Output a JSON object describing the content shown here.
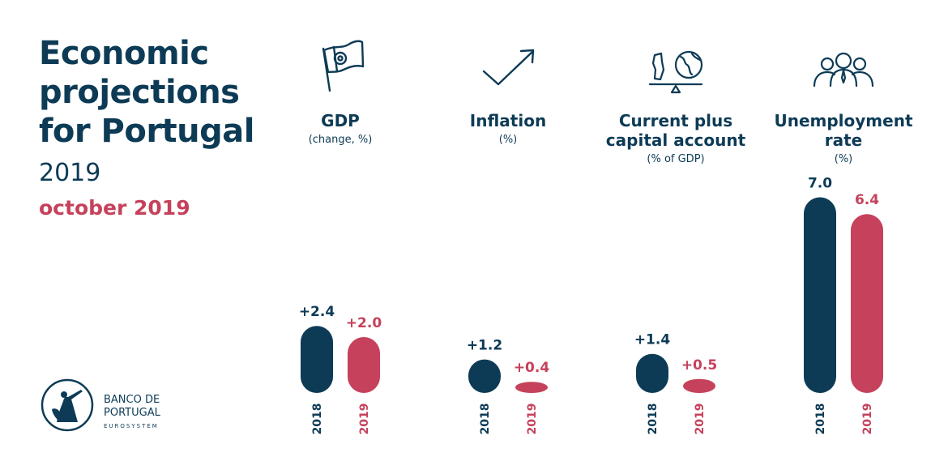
{
  "header": {
    "title_lines": [
      "Economic",
      "projections",
      "for Portugal"
    ],
    "year": "2019",
    "edition": "october 2019"
  },
  "logo": {
    "line1": "BANCO DE",
    "line2": "PORTUGAL",
    "line3": "EUROSYSTEM"
  },
  "colors": {
    "navy": "#0d3b56",
    "red": "#c6415b"
  },
  "chart_data": {
    "type": "bar",
    "series": [
      {
        "name": "2018",
        "color": "#0d3b56"
      },
      {
        "name": "2019",
        "color": "#c6415b"
      }
    ],
    "groups": [
      {
        "icon": "flag-icon",
        "title": [
          "GDP"
        ],
        "unit": "(change, %)",
        "values": [
          2.4,
          2.0
        ],
        "labels": [
          "+2.4",
          "+2.0"
        ]
      },
      {
        "icon": "trend-arrow-icon",
        "title": [
          "Inflation"
        ],
        "unit": "(%)",
        "values": [
          1.2,
          0.4
        ],
        "labels": [
          "+1.2",
          "+0.4"
        ]
      },
      {
        "icon": "balance-globe-icon",
        "title": [
          "Current plus",
          "capital account"
        ],
        "unit": "(% of GDP)",
        "values": [
          1.4,
          0.5
        ],
        "labels": [
          "+1.4",
          "+0.5"
        ]
      },
      {
        "icon": "people-icon",
        "title": [
          "Unemployment",
          "rate"
        ],
        "unit": "(%)",
        "values": [
          7.0,
          6.4
        ],
        "labels": [
          "7.0",
          "6.4"
        ]
      }
    ]
  }
}
